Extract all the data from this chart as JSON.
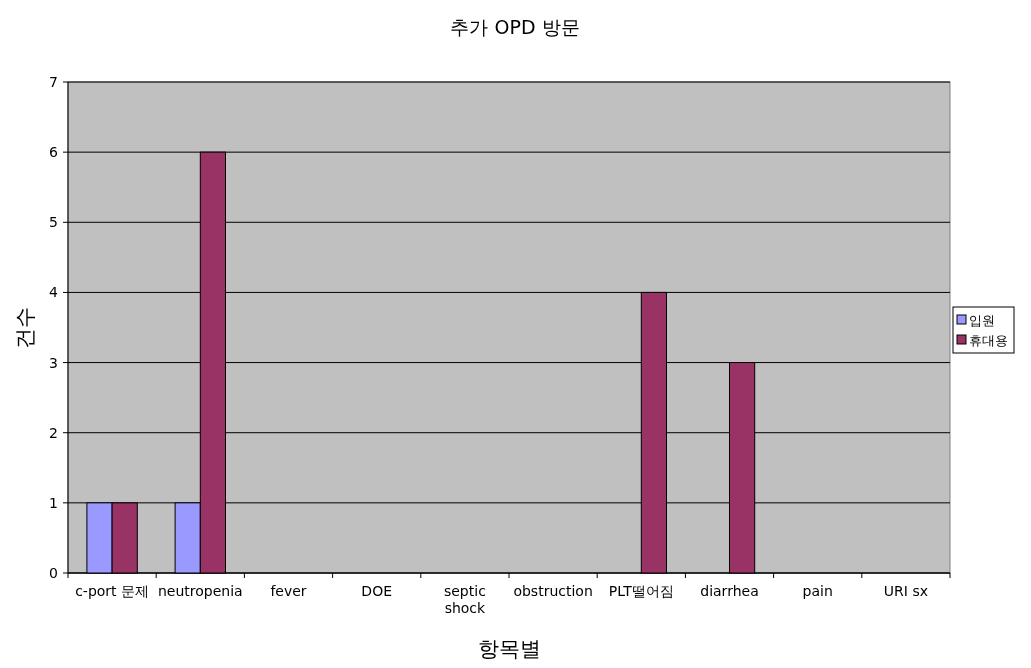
{
  "chart_data": {
    "type": "bar",
    "title": "추가 OPD 방문",
    "xlabel": "항목별",
    "ylabel": "건수",
    "categories": [
      "c-port 문제",
      "neutropenia",
      "fever",
      "DOE",
      "septic\nshock",
      "obstruction",
      "PLT떨어짐",
      "diarrhea",
      "pain",
      "URI sx"
    ],
    "series": [
      {
        "name": "입원",
        "color": "#9999ff",
        "values": [
          1,
          1,
          0,
          0,
          0,
          0,
          0,
          0,
          0,
          0
        ]
      },
      {
        "name": "휴대용",
        "color": "#993366",
        "values": [
          1,
          6,
          0,
          0,
          0,
          0,
          4,
          3,
          0,
          0
        ]
      }
    ],
    "ylim": [
      0,
      7
    ],
    "yticks": [
      0,
      1,
      2,
      3,
      4,
      5,
      6,
      7
    ],
    "grid": "y",
    "legend": "right"
  }
}
